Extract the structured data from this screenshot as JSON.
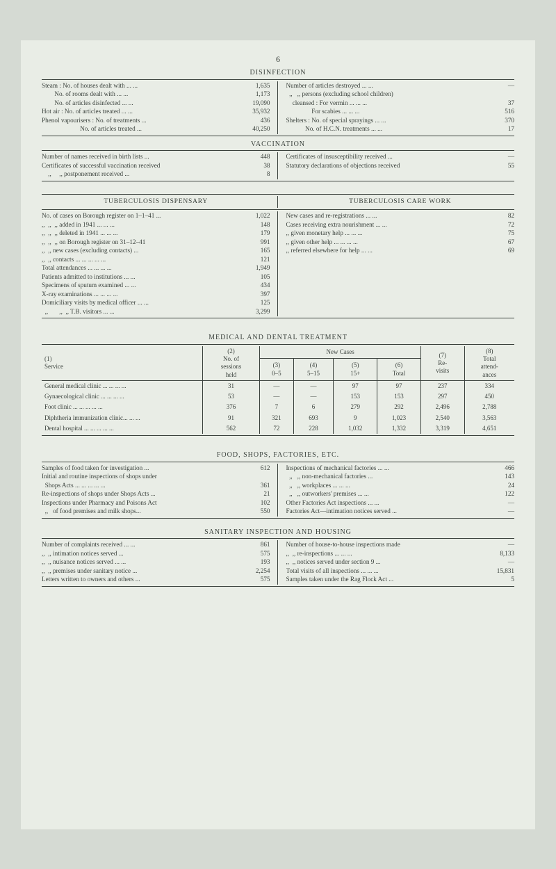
{
  "page_number": "6",
  "colors": {
    "background": "#d5dad3",
    "paper": "#e9ede6",
    "text": "#3a413c",
    "rule": "#3a413c"
  },
  "fonts": {
    "base_size_pt": 9.2,
    "title_size_pt": 10
  },
  "disinfection": {
    "title": "DISINFECTION",
    "left": [
      {
        "label": "Steam : No. of houses dealt with ... ...",
        "val": "1,635"
      },
      {
        "label": "        No. of rooms dealt with ... ...",
        "val": "1,173"
      },
      {
        "label": "        No. of articles disinfected ... ...",
        "val": "19,090"
      },
      {
        "label": "Hot air : No. of articles treated ... ...",
        "val": "35,932"
      },
      {
        "label": "Phenol vapourisers : No. of treatments ...",
        "val": "436"
      },
      {
        "label": "                        No. of articles treated ...",
        "val": "40,250"
      }
    ],
    "right": [
      {
        "label": "Number of articles destroyed ... ...",
        "val": "—"
      },
      {
        "label": "  ,,   ,, persons (excluding school children)",
        "val": ""
      },
      {
        "label": "    cleansed : For vermin ... ... ...",
        "val": "37"
      },
      {
        "label": "                For scabies ... ... ...",
        "val": "516"
      },
      {
        "label": "Shelters : No. of special sprayings ... ...",
        "val": "370"
      },
      {
        "label": "            No. of H.C.N. treatments ... ...",
        "val": "17"
      }
    ]
  },
  "vaccination": {
    "title": "VACCINATION",
    "left": [
      {
        "label": "Number of names received in birth lists ...",
        "val": "448"
      },
      {
        "label": "Certificates of successful vaccination received",
        "val": "38"
      },
      {
        "label": "    ,,     ,, postponement received ...",
        "val": "8"
      }
    ],
    "right": [
      {
        "label": "Certificates of insusceptibility received ...",
        "val": "—"
      },
      {
        "label": "Statutory declarations of objections received",
        "val": "55"
      }
    ]
  },
  "tb": {
    "left_title": "TUBERCULOSIS DISPENSARY",
    "right_title": "TUBERCULOSIS CARE WORK",
    "left": [
      {
        "label": "No. of cases on Borough register on 1–1–41 ...",
        "val": "1,022"
      },
      {
        "label": ",,  ,,  ,, added in 1941 ... ... ...",
        "val": "148"
      },
      {
        "label": ",,  ,,  ,, deleted in 1941 ... ... ...",
        "val": "179"
      },
      {
        "label": ",,  ,,  ,, on Borough register on 31–12–41",
        "val": "991"
      },
      {
        "label": ",,  ,, new cases (excluding contacts) ...",
        "val": "165"
      },
      {
        "label": ",,  ,, contacts ... ... ... ... ...",
        "val": "121"
      },
      {
        "label": "Total attendances ... ... ... ...",
        "val": "1,949"
      },
      {
        "label": "Patients admitted to institutions ... ...",
        "val": "105"
      },
      {
        "label": "Specimens of sputum examined ... ...",
        "val": "434"
      },
      {
        "label": "X-ray examinations ... ... ... ...",
        "val": "397"
      },
      {
        "label": "Domiciliary visits by medical officer ... ...",
        "val": "125"
      },
      {
        "label": "  ,,       ,,  ,, T.B. visitors ... ...",
        "val": "3,299"
      }
    ],
    "right": [
      {
        "label": "New cases and re-registrations ... ...",
        "val": "82"
      },
      {
        "label": "Cases receiving extra nourishment ... ...",
        "val": "72"
      },
      {
        "label": ",, given monetary help ... ... ...",
        "val": "75"
      },
      {
        "label": ",, given other help ... ... ... ...",
        "val": "67"
      },
      {
        "label": ",, referred elsewhere for help ... ...",
        "val": "69"
      }
    ]
  },
  "medical": {
    "title": "MEDICAL AND DENTAL TREATMENT",
    "headers": {
      "c1": "(1)\nService",
      "c2": "(2)\nNo. of\nsessions\nheld",
      "new_cases": "New Cases",
      "c3": "(3)\n0–5",
      "c4": "(4)\n5–15",
      "c5": "(5)\n15+",
      "c6": "(6)\nTotal",
      "c7": "(7)\nRe-\nvisits",
      "c8": "(8)\nTotal\nattend-\nances"
    },
    "rows": [
      {
        "service": "General medical clinic ... ... ... ...",
        "sessions": "31",
        "c3": "—",
        "c4": "—",
        "c5": "97",
        "c6": "97",
        "c7": "237",
        "c8": "334"
      },
      {
        "service": "Gynaecological clinic ... ... ... ...",
        "sessions": "53",
        "c3": "—",
        "c4": "—",
        "c5": "153",
        "c6": "153",
        "c7": "297",
        "c8": "450"
      },
      {
        "service": "Foot clinic ... ... ... ... ...",
        "sessions": "376",
        "c3": "7",
        "c4": "6",
        "c5": "279",
        "c6": "292",
        "c7": "2,496",
        "c8": "2,788"
      },
      {
        "service": "Diphtheria immunization clinic... ... ...",
        "sessions": "91",
        "c3": "321",
        "c4": "693",
        "c5": "9",
        "c6": "1,023",
        "c7": "2,540",
        "c8": "3,563"
      },
      {
        "service": "Dental hospital ... ... ... ... ...",
        "sessions": "562",
        "c3": "72",
        "c4": "228",
        "c5": "1,032",
        "c6": "1,332",
        "c7": "3,319",
        "c8": "4,651"
      }
    ]
  },
  "food": {
    "title": "FOOD, SHOPS, FACTORIES, ETC.",
    "left": [
      {
        "label": "Samples of food taken for investigation ...",
        "val": "612"
      },
      {
        "label": "Initial and routine inspections of shops under",
        "val": ""
      },
      {
        "label": "  Shops Acts ... ... ... ... ...",
        "val": "361"
      },
      {
        "label": "Re-inspections of shops under Shops Acts ...",
        "val": "21"
      },
      {
        "label": "Inspections under Pharmacy and Poisons Act",
        "val": "102"
      },
      {
        "label": "  ,,   of food premises and milk shops...",
        "val": "550"
      }
    ],
    "right": [
      {
        "label": "Inspections of mechanical factories ... ...",
        "val": "466"
      },
      {
        "label": "  ,,   ,, non-mechanical factories ...",
        "val": "143"
      },
      {
        "label": "  ,,   ,, workplaces ... ... ...",
        "val": "24"
      },
      {
        "label": "  ,,   ,, outworkers' premises ... ...",
        "val": "122"
      },
      {
        "label": "Other Factories Act inspections ... ...",
        "val": "—"
      },
      {
        "label": "Factories Act—intimation notices served ...",
        "val": "—"
      }
    ]
  },
  "sanitary": {
    "title": "SANITARY INSPECTION AND HOUSING",
    "left": [
      {
        "label": "Number of complaints received ... ...",
        "val": "861"
      },
      {
        "label": ",,  ,, intimation notices served ...",
        "val": "575"
      },
      {
        "label": ",,  ,, nuisance notices served ... ...",
        "val": "193"
      },
      {
        "label": ",,  ,, premises under sanitary notice ...",
        "val": "2,254"
      },
      {
        "label": "Letters written to owners and others ...",
        "val": "575"
      }
    ],
    "right": [
      {
        "label": "Number of house-to-house inspections made",
        "val": "—"
      },
      {
        "label": ",,  ,, re-inspections ... ... ...",
        "val": "8,133"
      },
      {
        "label": ",,  ,, notices served under section 9 ...",
        "val": "—"
      },
      {
        "label": "Total visits of all inspections ... ... ...",
        "val": "15,831"
      },
      {
        "label": "Samples taken under the Rag Flock Act ...",
        "val": "5"
      }
    ]
  }
}
